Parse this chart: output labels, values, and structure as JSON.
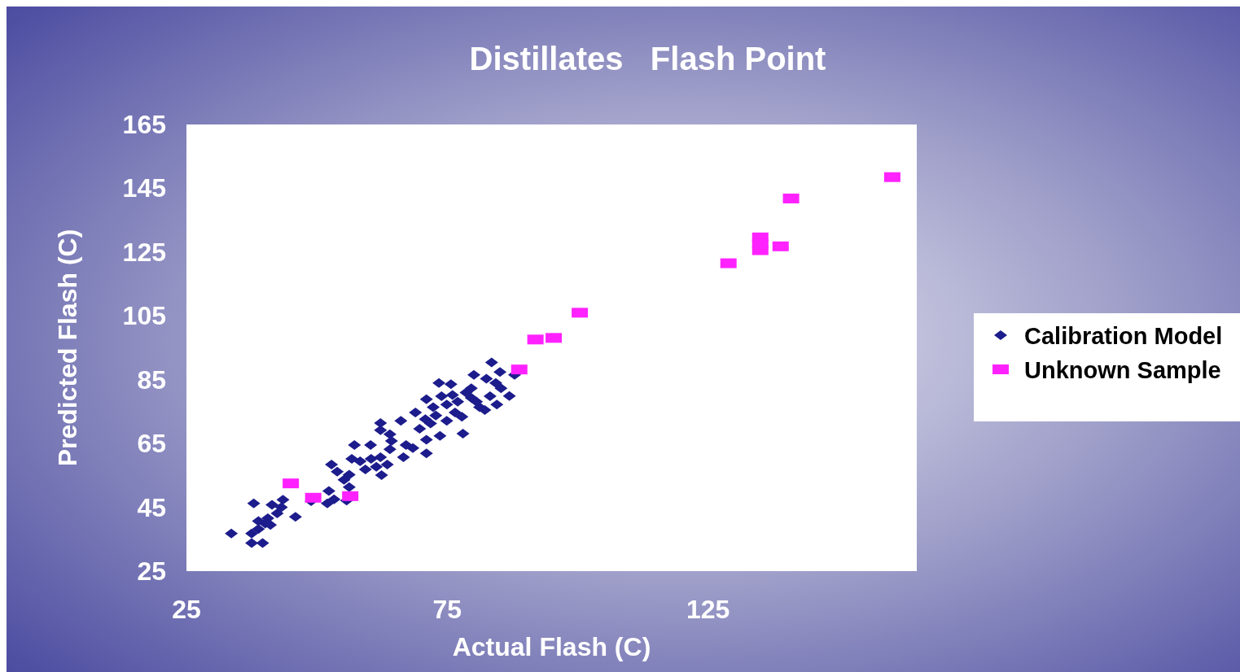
{
  "chart_data": {
    "type": "scatter",
    "title": "Distillates   Flash Point",
    "xlabel": "Actual Flash (C)",
    "ylabel": "Predicted Flash (C)",
    "xlim": [
      25,
      165
    ],
    "xticks": [
      25,
      75,
      125
    ],
    "ylim": [
      25,
      165
    ],
    "yticks": [
      25,
      45,
      65,
      85,
      105,
      125,
      145,
      165
    ],
    "grid": false,
    "legend": "right",
    "series": [
      {
        "name": "Calibration Model",
        "color": "#1c1c8c",
        "marker": "diamond",
        "x": [
          33.6,
          37.5,
          39.6,
          37.5,
          38.8,
          40.1,
          38.8,
          41.1,
          40.6,
          37.9,
          41.4,
          42.4,
          43.5,
          43.2,
          45.9,
          48.9,
          52.0,
          52.3,
          53.3,
          55.7,
          56.2,
          55.2,
          53.9,
          52.8,
          56.7,
          57.2,
          60.3,
          58.3,
          60.4,
          61.4,
          62.4,
          63.5,
          62.2,
          59.3,
          56.2,
          62.2,
          62.2,
          64.0,
          64.3,
          64.0,
          66.6,
          67.1,
          68.4,
          71.0,
          71.0,
          66.1,
          68.9,
          69.7,
          70.8,
          71.0,
          72.3,
          73.6,
          73.4,
          75.7,
          73.9,
          74.9,
          76.5,
          78.0,
          77.8,
          77.0,
          78.6,
          79.6,
          80.1,
          81.2,
          82.2,
          83.2,
          84.5,
          82.5,
          84.3,
          85.3,
          86.9,
          83.5,
          85.1,
          87.9,
          74.9,
          71.8,
          72.8,
          79.6,
          80.6,
          76.0
        ],
        "values": [
          36.8,
          33.8,
          33.8,
          36.8,
          38.2,
          39.9,
          40.7,
          39.5,
          41.6,
          46.2,
          45.8,
          43.1,
          47.4,
          45.0,
          42.0,
          46.9,
          46.2,
          50.1,
          47.5,
          47.1,
          51.3,
          53.6,
          56.2,
          58.4,
          60.2,
          64.5,
          64.5,
          59.4,
          60.2,
          57.7,
          55.1,
          58.4,
          60.7,
          56.9,
          55.2,
          71.4,
          69.2,
          67.9,
          65.8,
          63.2,
          60.7,
          64.5,
          63.6,
          61.9,
          66.2,
          72.1,
          74.7,
          69.6,
          72.6,
          78.9,
          76.4,
          67.4,
          84.0,
          83.6,
          79.8,
          77.2,
          74.7,
          68.1,
          73.4,
          78.1,
          81.0,
          79.3,
          86.5,
          76.4,
          75.5,
          79.8,
          77.2,
          85.3,
          84.0,
          82.3,
          79.9,
          90.4,
          87.4,
          86.5,
          72.1,
          71.3,
          73.8,
          82.3,
          78.1,
          80.2
        ]
      },
      {
        "name": "Unknown Sample",
        "color": "#ff22ff",
        "marker": "square",
        "x": [
          45.0,
          49.3,
          56.4,
          88.8,
          91.9,
          95.4,
          100.4,
          128.9,
          135.0,
          135.0,
          135.0,
          138.9,
          140.9,
          160.3
        ],
        "values": [
          52.5,
          48.0,
          48.5,
          88.2,
          97.6,
          98.1,
          106.0,
          121.5,
          129.6,
          127.6,
          125.6,
          126.8,
          141.8,
          148.5
        ]
      }
    ]
  }
}
